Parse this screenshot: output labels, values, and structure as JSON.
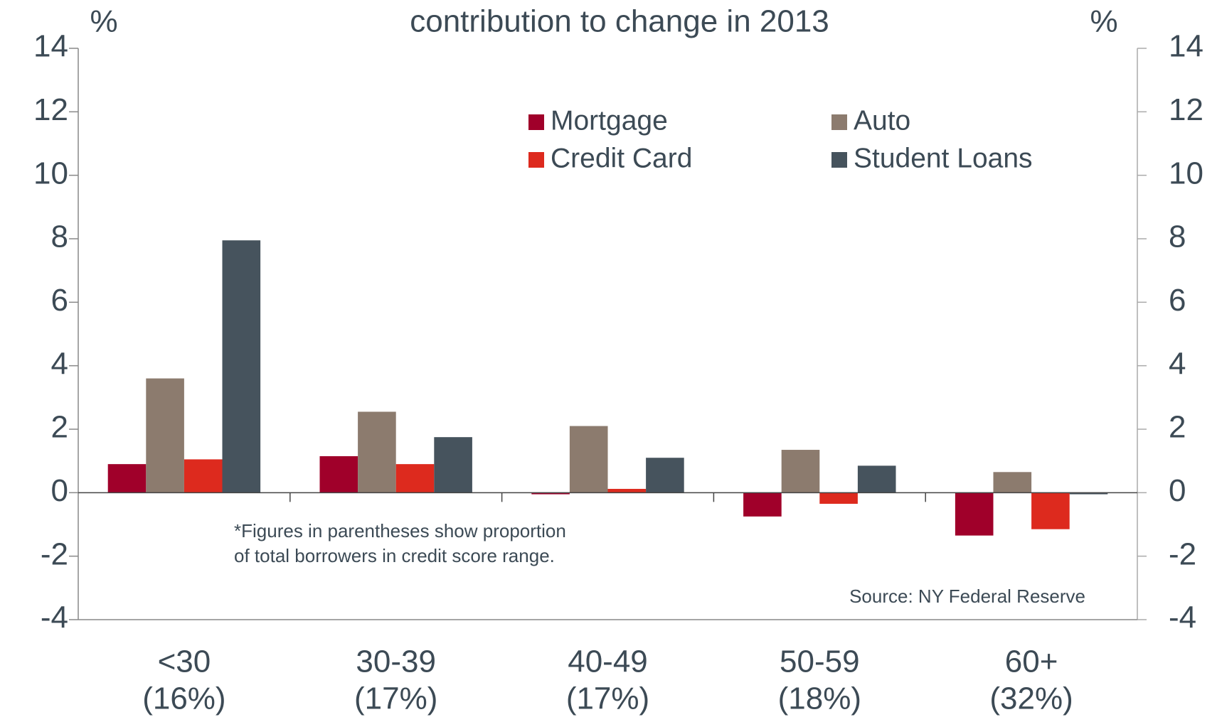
{
  "chart_data": {
    "type": "bar",
    "title": "contribution to change in 2013",
    "y_unit": "%",
    "y2_unit": "%",
    "categories": [
      [
        "<30",
        "(16%)"
      ],
      [
        "30-39",
        "(17%)"
      ],
      [
        "40-49",
        "(17%)"
      ],
      [
        "50-59",
        "(18%)"
      ],
      [
        "60+",
        "(32%)"
      ]
    ],
    "series": [
      {
        "name": "Mortgage",
        "color": "#a0002a",
        "values": [
          0.9,
          1.15,
          -0.05,
          -0.75,
          -1.35
        ]
      },
      {
        "name": "Auto",
        "color": "#8c7b6e",
        "values": [
          3.6,
          2.55,
          2.1,
          1.35,
          0.65
        ]
      },
      {
        "name": "Credit Card",
        "color": "#dd2a1e",
        "values": [
          1.05,
          0.9,
          0.12,
          -0.35,
          -1.15
        ]
      },
      {
        "name": "Student Loans",
        "color": "#46535d",
        "values": [
          7.95,
          1.75,
          1.1,
          0.85,
          -0.05
        ]
      }
    ],
    "ylim": [
      -4,
      14
    ],
    "yticks": [
      -4,
      -2,
      0,
      2,
      4,
      6,
      8,
      10,
      12,
      14
    ],
    "y2lim": [
      -4,
      14
    ],
    "y2ticks": [
      -4,
      -2,
      0,
      2,
      4,
      6,
      8,
      10,
      12,
      14
    ],
    "note": [
      "*Figures in parentheses show proportion",
      "of total borrowers in credit score range."
    ],
    "source": "Source: NY Federal Reserve"
  }
}
